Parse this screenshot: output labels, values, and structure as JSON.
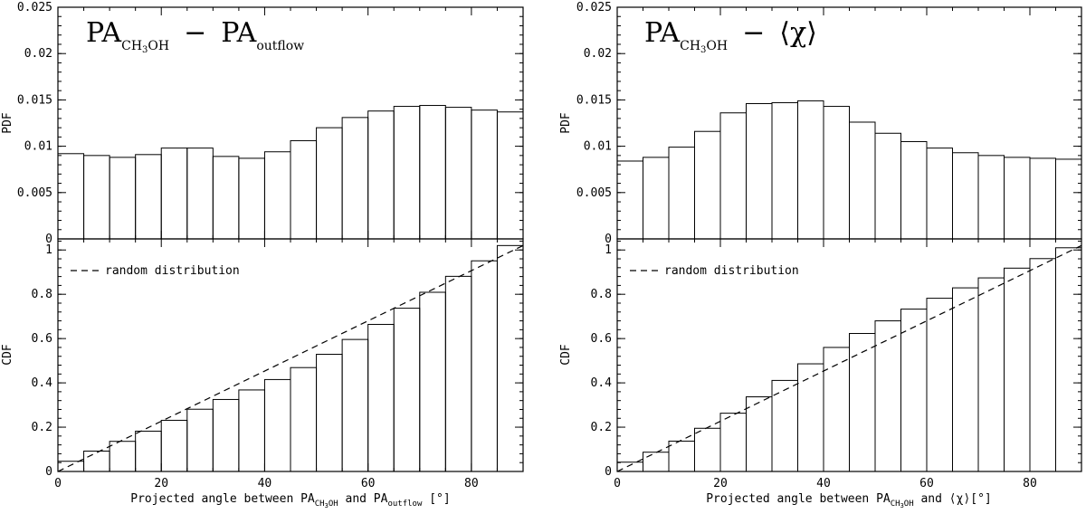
{
  "chart_data": [
    {
      "type": "bar",
      "subplot": "left-top",
      "title_parts": {
        "pa": "PA",
        "sub1": "CH",
        "sub2": "3",
        "sub3": "OH",
        "minus": "−",
        "pa2": "PA",
        "sub4": "outflow"
      },
      "ylabel": "PDF",
      "xlim": [
        0,
        90
      ],
      "ylim": [
        0,
        0.025
      ],
      "bin_width": 5,
      "bin_starts": [
        0,
        5,
        10,
        15,
        20,
        25,
        30,
        35,
        40,
        45,
        50,
        55,
        60,
        65,
        70,
        75,
        80,
        85
      ],
      "values": [
        0.0092,
        0.009,
        0.0088,
        0.0091,
        0.0098,
        0.0098,
        0.0089,
        0.0087,
        0.0094,
        0.0106,
        0.012,
        0.0131,
        0.0138,
        0.0143,
        0.0144,
        0.0142,
        0.0139,
        0.0137
      ],
      "yticks": [
        0,
        0.005,
        0.01,
        0.015,
        0.02,
        0.025
      ],
      "ytick_labels": [
        "0",
        "0.005",
        "0.01",
        "0.015",
        "0.02",
        "0.025"
      ]
    },
    {
      "type": "bar",
      "subplot": "left-bottom",
      "ylabel": "CDF",
      "xlabel_parts": {
        "pre": "Projected angle between PA",
        "sub1": "CH",
        "sub2": "3",
        "sub3": "OH",
        "mid": " and PA",
        "sub4": "outflow",
        "post": " [°]"
      },
      "xlim": [
        0,
        90
      ],
      "ylim": [
        0,
        1.05
      ],
      "bin_width": 5,
      "bin_starts": [
        0,
        5,
        10,
        15,
        20,
        25,
        30,
        35,
        40,
        45,
        50,
        55,
        60,
        65,
        70,
        75,
        80,
        85
      ],
      "values": [
        0.046,
        0.092,
        0.136,
        0.182,
        0.231,
        0.281,
        0.325,
        0.368,
        0.415,
        0.469,
        0.529,
        0.596,
        0.664,
        0.737,
        0.809,
        0.881,
        0.951,
        1.02
      ],
      "reference_line": {
        "label": "random distribution",
        "x": [
          0,
          90
        ],
        "y": [
          0,
          1.02
        ]
      },
      "xticks": [
        0,
        20,
        40,
        60,
        80
      ],
      "xtick_labels": [
        "0",
        "20",
        "40",
        "60",
        "80"
      ],
      "yticks": [
        0,
        0.2,
        0.4,
        0.6,
        0.8,
        1
      ],
      "ytick_labels": [
        "0",
        "0.2",
        "0.4",
        "0.6",
        "0.8",
        "1"
      ]
    },
    {
      "type": "bar",
      "subplot": "right-top",
      "title_parts": {
        "pa": "PA",
        "sub1": "CH",
        "sub2": "3",
        "sub3": "OH",
        "minus": "−",
        "chi": "⟨χ⟩"
      },
      "ylabel": "PDF",
      "xlim": [
        0,
        90
      ],
      "ylim": [
        0,
        0.025
      ],
      "bin_width": 5,
      "bin_starts": [
        0,
        5,
        10,
        15,
        20,
        25,
        30,
        35,
        40,
        45,
        50,
        55,
        60,
        65,
        70,
        75,
        80,
        85
      ],
      "values": [
        0.0084,
        0.0088,
        0.0099,
        0.0116,
        0.0136,
        0.0146,
        0.0147,
        0.0149,
        0.0143,
        0.0126,
        0.0114,
        0.0105,
        0.0098,
        0.0093,
        0.009,
        0.0088,
        0.0087,
        0.0086
      ],
      "yticks": [
        0,
        0.005,
        0.01,
        0.015,
        0.02,
        0.025
      ],
      "ytick_labels": [
        "0",
        "0.005",
        "0.01",
        "0.015",
        "0.02",
        "0.025"
      ]
    },
    {
      "type": "bar",
      "subplot": "right-bottom",
      "ylabel": "CDF",
      "xlabel_parts": {
        "pre": "Projected angle between PA",
        "sub1": "CH",
        "sub2": "3",
        "sub3": "OH",
        "mid": " and ⟨χ⟩",
        "post": "[°]"
      },
      "xlim": [
        0,
        90
      ],
      "ylim": [
        0,
        1.05
      ],
      "bin_width": 5,
      "bin_starts": [
        0,
        5,
        10,
        15,
        20,
        25,
        30,
        35,
        40,
        45,
        50,
        55,
        60,
        65,
        70,
        75,
        80,
        85
      ],
      "values": [
        0.042,
        0.087,
        0.137,
        0.195,
        0.263,
        0.337,
        0.411,
        0.486,
        0.56,
        0.623,
        0.68,
        0.733,
        0.782,
        0.829,
        0.874,
        0.918,
        0.961,
        1.01
      ],
      "reference_line": {
        "label": "random distribution",
        "x": [
          0,
          90
        ],
        "y": [
          0,
          1.02
        ]
      },
      "xticks": [
        0,
        20,
        40,
        60,
        80
      ],
      "xtick_labels": [
        "0",
        "20",
        "40",
        "60",
        "80"
      ],
      "yticks": [
        0,
        0.2,
        0.4,
        0.6,
        0.8,
        1
      ],
      "ytick_labels": [
        "0",
        "0.2",
        "0.4",
        "0.6",
        "0.8",
        "1"
      ]
    }
  ]
}
